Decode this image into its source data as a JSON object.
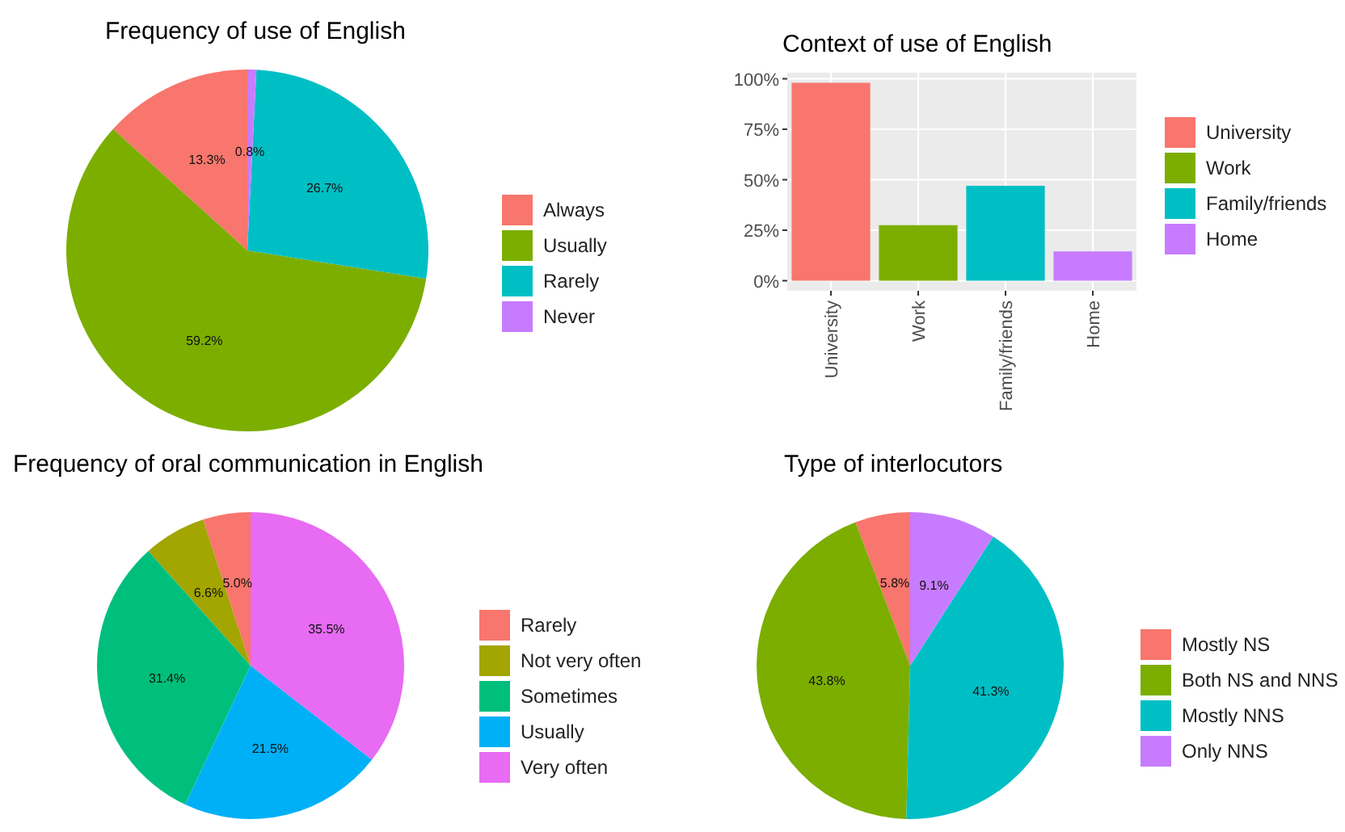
{
  "chart_data": [
    {
      "type": "pie",
      "title": "Frequency of use of English",
      "categories": [
        "Always",
        "Usually",
        "Rarely",
        "Never"
      ],
      "values": [
        13.3,
        59.2,
        26.7,
        0.8
      ],
      "colors": [
        "#f8766d",
        "#7cae00",
        "#00bfc4",
        "#c77cff"
      ],
      "value_labels": [
        "13.3%",
        "59.2%",
        "26.7%",
        "0.8%"
      ],
      "legend": "right"
    },
    {
      "type": "bar",
      "title": "Context of use of English",
      "categories": [
        "University",
        "Work",
        "Family/friends",
        "Home"
      ],
      "series": [
        {
          "name": "University",
          "color": "#f8766d",
          "values": [
            98,
            null,
            null,
            null
          ]
        },
        {
          "name": "Work",
          "color": "#7cae00",
          "values": [
            null,
            27.5,
            null,
            null
          ]
        },
        {
          "name": "Family/friends",
          "color": "#00bfc4",
          "values": [
            null,
            null,
            47,
            null
          ]
        },
        {
          "name": "Home",
          "color": "#c77cff",
          "values": [
            null,
            null,
            null,
            14.5
          ]
        }
      ],
      "ylim": [
        -5,
        103
      ],
      "yticks": [
        {
          "value": 0,
          "label": "0%"
        },
        {
          "value": 25,
          "label": "25%"
        },
        {
          "value": 50,
          "label": "50%"
        },
        {
          "value": 75,
          "label": "75%"
        },
        {
          "value": 100,
          "label": "100%"
        }
      ],
      "grid": true,
      "legend": "right"
    },
    {
      "type": "pie",
      "title": "Frequency of oral communication in English",
      "categories": [
        "Rarely",
        "Not very often",
        "Sometimes",
        "Usually",
        "Very often"
      ],
      "values": [
        5.0,
        6.6,
        31.4,
        21.5,
        35.5
      ],
      "colors": [
        "#f8766d",
        "#a3a500",
        "#00bf7d",
        "#00b0f6",
        "#e76bf3"
      ],
      "value_labels": [
        "5.0%",
        "6.6%",
        "31.4%",
        "21.5%",
        "35.5%"
      ],
      "legend": "right"
    },
    {
      "type": "pie",
      "title": "Type of interlocutors",
      "categories": [
        "Mostly NS",
        "Both NS and NNS",
        "Mostly NNS",
        "Only NNS"
      ],
      "values": [
        5.8,
        43.8,
        41.3,
        9.1
      ],
      "colors": [
        "#f8766d",
        "#7cae00",
        "#00bfc4",
        "#c77cff"
      ],
      "value_labels": [
        "5.8%",
        "43.8%",
        "41.3%",
        "9.1%"
      ],
      "legend": "right"
    }
  ]
}
